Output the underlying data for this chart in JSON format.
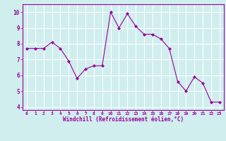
{
  "x": [
    0,
    1,
    2,
    3,
    4,
    5,
    6,
    7,
    8,
    9,
    10,
    11,
    12,
    13,
    14,
    15,
    16,
    17,
    18,
    19,
    20,
    21,
    22,
    23
  ],
  "y": [
    7.7,
    7.7,
    7.7,
    8.1,
    7.7,
    6.9,
    5.8,
    6.4,
    6.6,
    6.6,
    10.0,
    9.0,
    9.9,
    9.1,
    8.6,
    8.6,
    8.3,
    7.7,
    5.6,
    5.0,
    5.9,
    5.5,
    4.3,
    4.3
  ],
  "line_color": "#990099",
  "marker": "D",
  "marker_size": 2.0,
  "bg_color": "#d0eeee",
  "grid_color": "#ffffff",
  "xlabel": "Windchill (Refroidissement éolien,°C)",
  "xlabel_color": "#990099",
  "tick_color": "#990099",
  "spine_color": "#990099",
  "ylim": [
    3.8,
    10.5
  ],
  "xlim": [
    -0.5,
    23.5
  ],
  "yticks": [
    4,
    5,
    6,
    7,
    8,
    9,
    10
  ],
  "xticks": [
    0,
    1,
    2,
    3,
    4,
    5,
    6,
    7,
    8,
    9,
    10,
    11,
    12,
    13,
    14,
    15,
    16,
    17,
    18,
    19,
    20,
    21,
    22,
    23
  ]
}
